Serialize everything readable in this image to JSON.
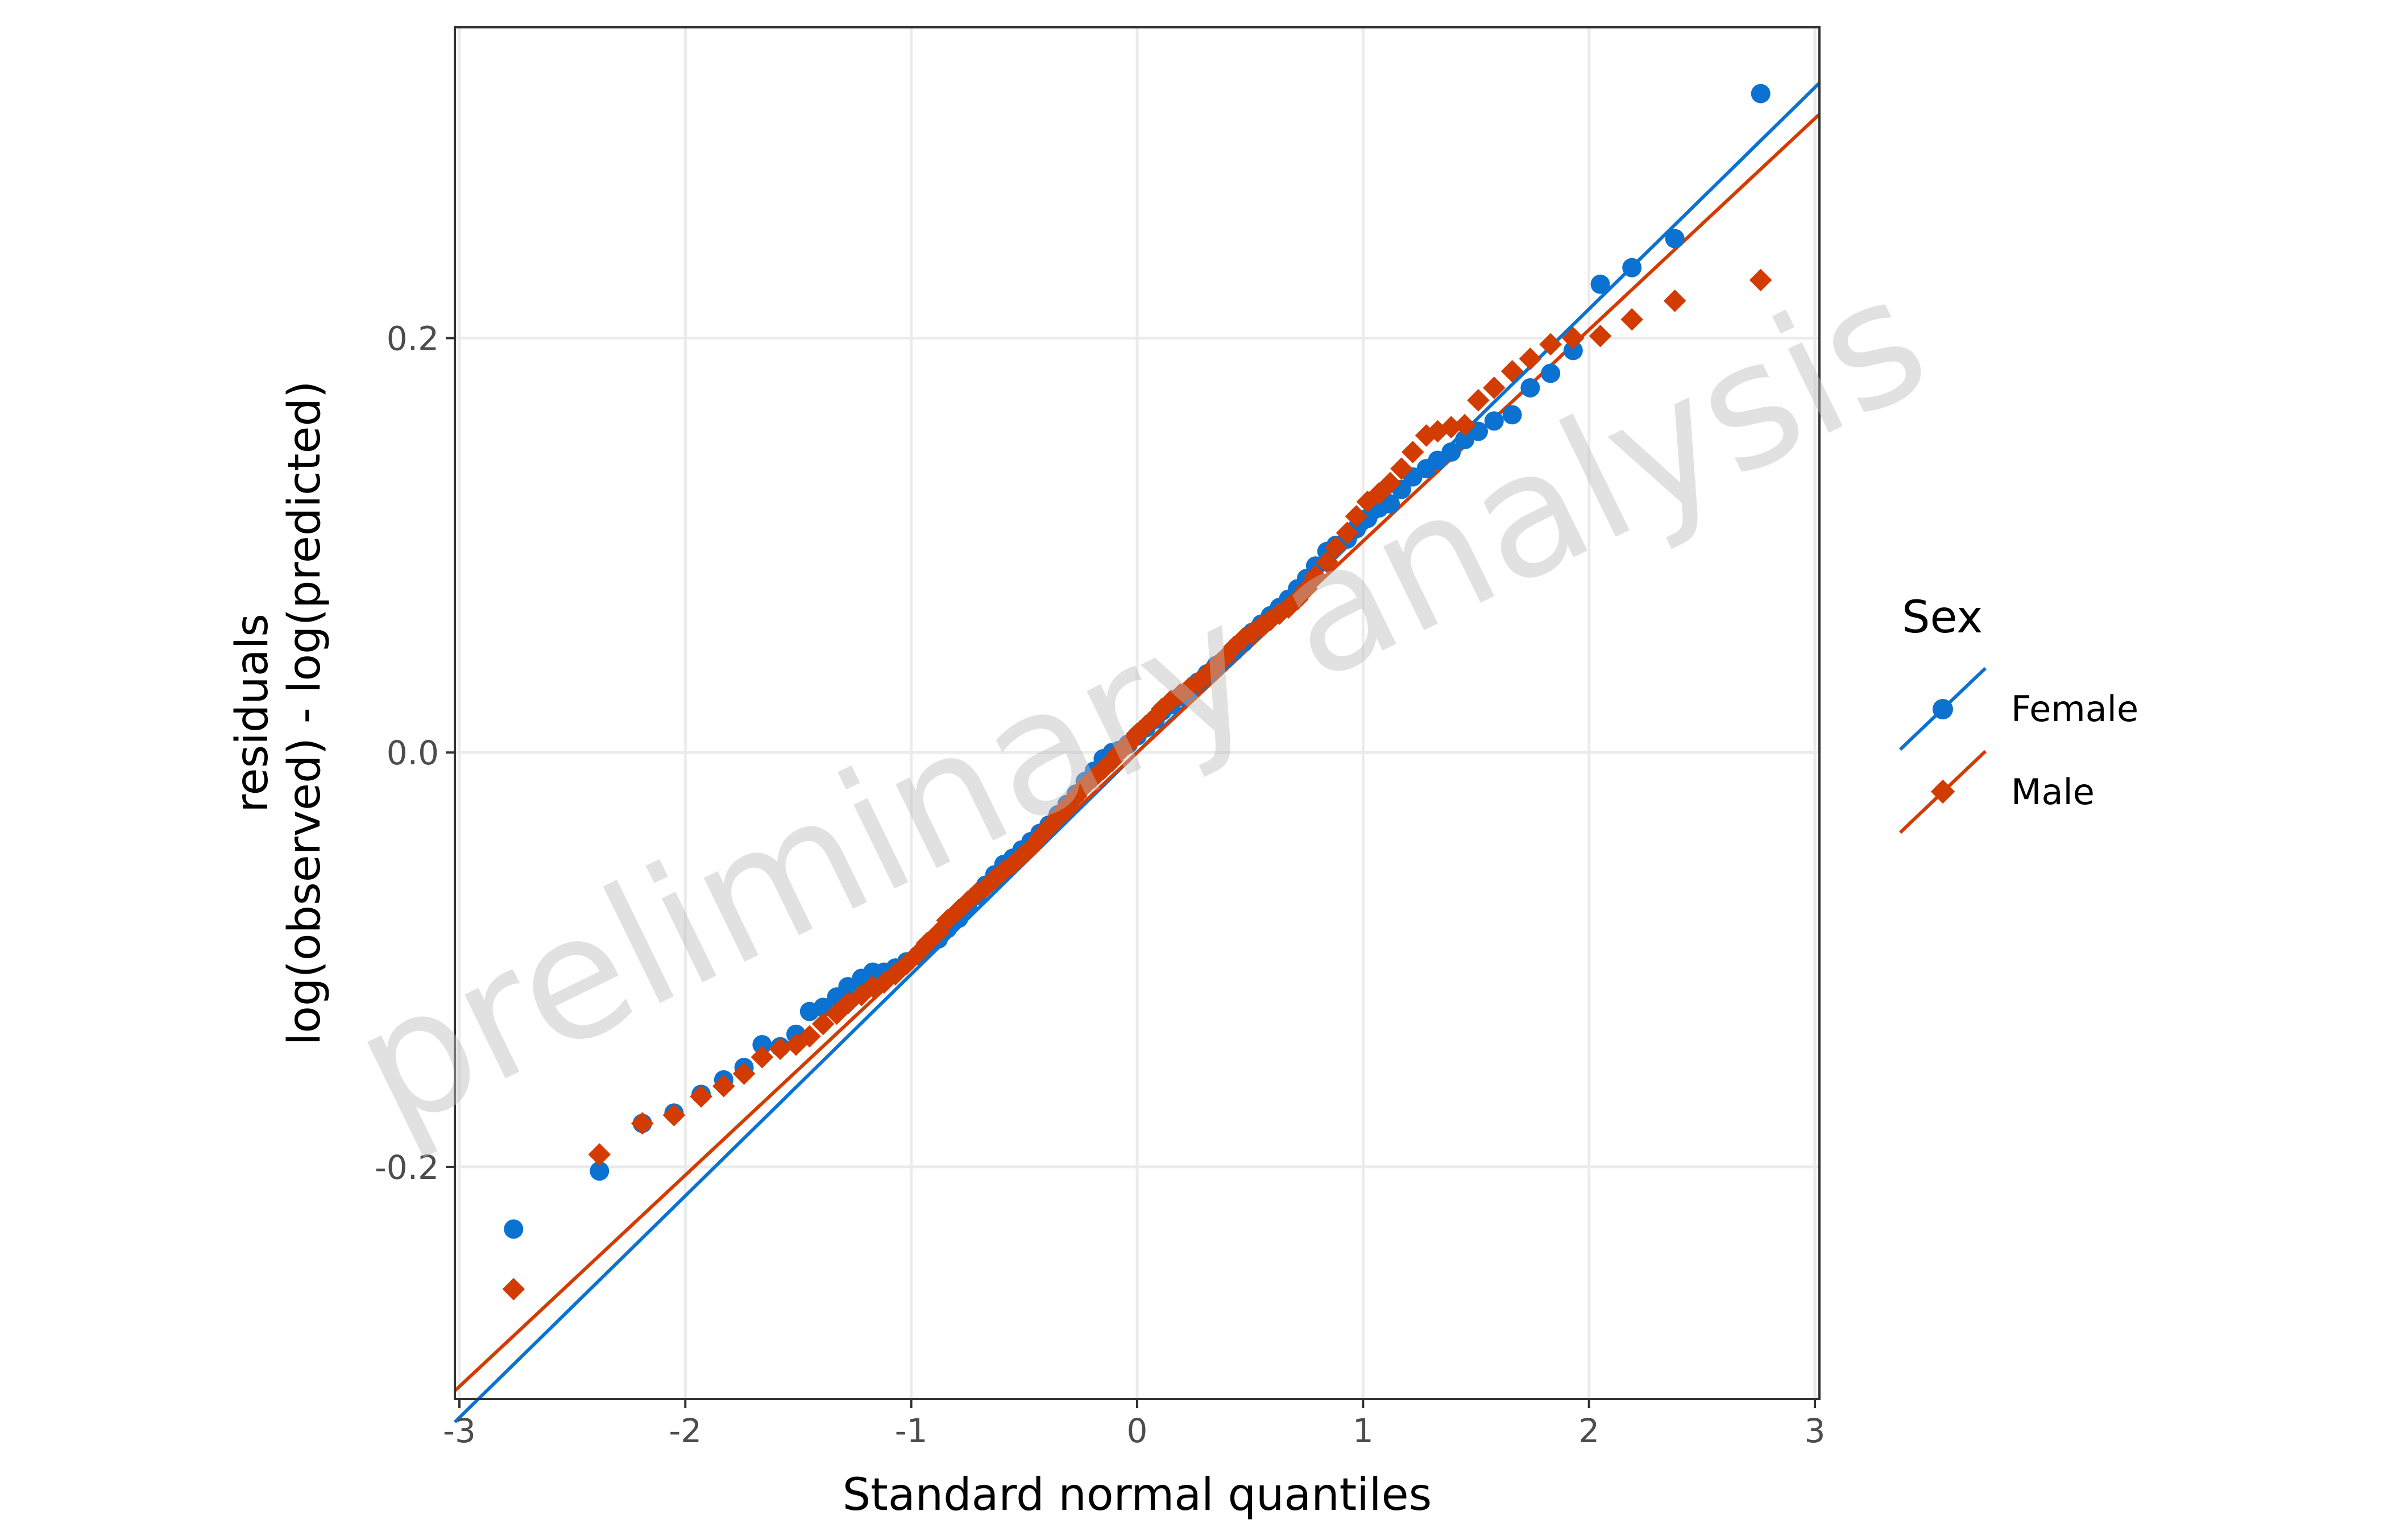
{
  "chart_data": {
    "type": "scatter",
    "subtype": "qq-plot",
    "xlabel": "Standard normal quantiles",
    "ylabel_lines": [
      "residuals",
      "log(observed) - log(predicted)"
    ],
    "xlim": [
      -3.02,
      3.02
    ],
    "ylim": [
      -0.312,
      0.35
    ],
    "x_ticks": [
      -3,
      -2,
      -1,
      0,
      1,
      2,
      3
    ],
    "x_tick_labels": [
      "-3",
      "-2",
      "-1",
      "0",
      "1",
      "2",
      "3"
    ],
    "y_ticks": [
      -0.2,
      0.0,
      0.2
    ],
    "y_tick_labels": [
      "-0.2",
      "0.0",
      "0.2"
    ],
    "grid": true,
    "legend": {
      "title": "Sex",
      "position": "right"
    },
    "watermark": "preliminary analysis",
    "series": [
      {
        "name": "Female",
        "color": "#0b72d1",
        "marker": "circle",
        "line": {
          "intercept": 0.0,
          "slope": 0.107
        },
        "points": [
          [
            -2.76,
            -0.23
          ],
          [
            -2.38,
            -0.202
          ],
          [
            -2.19,
            -0.179
          ],
          [
            -2.05,
            -0.174
          ],
          [
            -1.93,
            -0.165
          ],
          [
            -1.83,
            -0.158
          ],
          [
            -1.74,
            -0.152
          ],
          [
            -1.66,
            -0.141
          ],
          [
            -1.58,
            -0.142
          ],
          [
            -1.51,
            -0.136
          ],
          [
            -1.45,
            -0.125
          ],
          [
            -1.39,
            -0.123
          ],
          [
            -1.33,
            -0.118
          ],
          [
            -1.28,
            -0.113
          ],
          [
            -1.22,
            -0.109
          ],
          [
            -1.17,
            -0.106
          ],
          [
            -1.12,
            -0.106
          ],
          [
            -1.07,
            -0.104
          ],
          [
            -1.02,
            -0.101
          ],
          [
            -0.97,
            -0.098
          ],
          [
            -0.93,
            -0.094
          ],
          [
            -0.88,
            -0.09
          ],
          [
            -0.84,
            -0.085
          ],
          [
            -0.79,
            -0.08
          ],
          [
            -0.75,
            -0.074
          ],
          [
            -0.71,
            -0.069
          ],
          [
            -0.67,
            -0.064
          ],
          [
            -0.63,
            -0.059
          ],
          [
            -0.59,
            -0.054
          ],
          [
            -0.55,
            -0.051
          ],
          [
            -0.51,
            -0.047
          ],
          [
            -0.47,
            -0.043
          ],
          [
            -0.43,
            -0.039
          ],
          [
            -0.39,
            -0.035
          ],
          [
            -0.35,
            -0.03
          ],
          [
            -0.31,
            -0.025
          ],
          [
            -0.27,
            -0.02
          ],
          [
            -0.23,
            -0.014
          ],
          [
            -0.19,
            -0.009
          ],
          [
            -0.15,
            -0.003
          ],
          [
            -0.11,
            0.0
          ],
          [
            -0.08,
            0.001
          ],
          [
            -0.04,
            0.004
          ],
          [
            0.0,
            0.008
          ],
          [
            0.04,
            0.012
          ],
          [
            0.08,
            0.016
          ],
          [
            0.11,
            0.02
          ],
          [
            0.15,
            0.023
          ],
          [
            0.19,
            0.027
          ],
          [
            0.23,
            0.03
          ],
          [
            0.27,
            0.034
          ],
          [
            0.31,
            0.038
          ],
          [
            0.35,
            0.042
          ],
          [
            0.39,
            0.045
          ],
          [
            0.43,
            0.049
          ],
          [
            0.47,
            0.053
          ],
          [
            0.51,
            0.058
          ],
          [
            0.55,
            0.062
          ],
          [
            0.59,
            0.066
          ],
          [
            0.63,
            0.07
          ],
          [
            0.67,
            0.074
          ],
          [
            0.71,
            0.079
          ],
          [
            0.75,
            0.084
          ],
          [
            0.79,
            0.09
          ],
          [
            0.84,
            0.097
          ],
          [
            0.88,
            0.1
          ],
          [
            0.93,
            0.103
          ],
          [
            0.97,
            0.108
          ],
          [
            1.02,
            0.113
          ],
          [
            1.07,
            0.118
          ],
          [
            1.12,
            0.12
          ],
          [
            1.17,
            0.127
          ],
          [
            1.22,
            0.133
          ],
          [
            1.28,
            0.137
          ],
          [
            1.33,
            0.141
          ],
          [
            1.39,
            0.145
          ],
          [
            1.45,
            0.151
          ],
          [
            1.51,
            0.155
          ],
          [
            1.58,
            0.16
          ],
          [
            1.66,
            0.163
          ],
          [
            1.74,
            0.176
          ],
          [
            1.83,
            0.183
          ],
          [
            1.93,
            0.194
          ],
          [
            2.05,
            0.226
          ],
          [
            2.19,
            0.234
          ],
          [
            2.38,
            0.248
          ],
          [
            2.76,
            0.318
          ]
        ]
      },
      {
        "name": "Male",
        "color": "#d23c00",
        "marker": "diamond",
        "line": {
          "intercept": 0.0,
          "slope": 0.102
        },
        "points": [
          [
            -2.76,
            -0.259
          ],
          [
            -2.38,
            -0.194
          ],
          [
            -2.19,
            -0.179
          ],
          [
            -2.05,
            -0.175
          ],
          [
            -1.93,
            -0.166
          ],
          [
            -1.83,
            -0.161
          ],
          [
            -1.74,
            -0.155
          ],
          [
            -1.66,
            -0.147
          ],
          [
            -1.58,
            -0.143
          ],
          [
            -1.51,
            -0.141
          ],
          [
            -1.45,
            -0.137
          ],
          [
            -1.39,
            -0.131
          ],
          [
            -1.33,
            -0.126
          ],
          [
            -1.28,
            -0.121
          ],
          [
            -1.22,
            -0.117
          ],
          [
            -1.17,
            -0.113
          ],
          [
            -1.12,
            -0.111
          ],
          [
            -1.07,
            -0.107
          ],
          [
            -1.02,
            -0.102
          ],
          [
            -0.97,
            -0.097
          ],
          [
            -0.93,
            -0.092
          ],
          [
            -0.88,
            -0.087
          ],
          [
            -0.84,
            -0.081
          ],
          [
            -0.79,
            -0.076
          ],
          [
            -0.75,
            -0.072
          ],
          [
            -0.71,
            -0.068
          ],
          [
            -0.67,
            -0.065
          ],
          [
            -0.63,
            -0.061
          ],
          [
            -0.59,
            -0.057
          ],
          [
            -0.55,
            -0.054
          ],
          [
            -0.51,
            -0.05
          ],
          [
            -0.47,
            -0.046
          ],
          [
            -0.43,
            -0.041
          ],
          [
            -0.39,
            -0.036
          ],
          [
            -0.35,
            -0.031
          ],
          [
            -0.31,
            -0.026
          ],
          [
            -0.27,
            -0.021
          ],
          [
            -0.23,
            -0.016
          ],
          [
            -0.19,
            -0.012
          ],
          [
            -0.15,
            -0.008
          ],
          [
            -0.11,
            -0.004
          ],
          [
            -0.08,
            0.0
          ],
          [
            -0.04,
            0.004
          ],
          [
            0.0,
            0.009
          ],
          [
            0.04,
            0.013
          ],
          [
            0.08,
            0.017
          ],
          [
            0.11,
            0.021
          ],
          [
            0.15,
            0.025
          ],
          [
            0.19,
            0.028
          ],
          [
            0.23,
            0.031
          ],
          [
            0.27,
            0.034
          ],
          [
            0.31,
            0.038
          ],
          [
            0.35,
            0.042
          ],
          [
            0.39,
            0.046
          ],
          [
            0.43,
            0.051
          ],
          [
            0.47,
            0.055
          ],
          [
            0.51,
            0.058
          ],
          [
            0.55,
            0.061
          ],
          [
            0.59,
            0.064
          ],
          [
            0.63,
            0.067
          ],
          [
            0.67,
            0.07
          ],
          [
            0.71,
            0.074
          ],
          [
            0.75,
            0.079
          ],
          [
            0.79,
            0.085
          ],
          [
            0.84,
            0.092
          ],
          [
            0.88,
            0.099
          ],
          [
            0.93,
            0.106
          ],
          [
            0.97,
            0.114
          ],
          [
            1.02,
            0.121
          ],
          [
            1.07,
            0.125
          ],
          [
            1.12,
            0.13
          ],
          [
            1.17,
            0.137
          ],
          [
            1.22,
            0.145
          ],
          [
            1.28,
            0.153
          ],
          [
            1.33,
            0.155
          ],
          [
            1.39,
            0.157
          ],
          [
            1.45,
            0.158
          ],
          [
            1.51,
            0.17
          ],
          [
            1.58,
            0.176
          ],
          [
            1.66,
            0.184
          ],
          [
            1.74,
            0.19
          ],
          [
            1.83,
            0.197
          ],
          [
            1.93,
            0.2
          ],
          [
            2.05,
            0.201
          ],
          [
            2.19,
            0.209
          ],
          [
            2.38,
            0.218
          ],
          [
            2.76,
            0.228
          ]
        ]
      }
    ]
  }
}
